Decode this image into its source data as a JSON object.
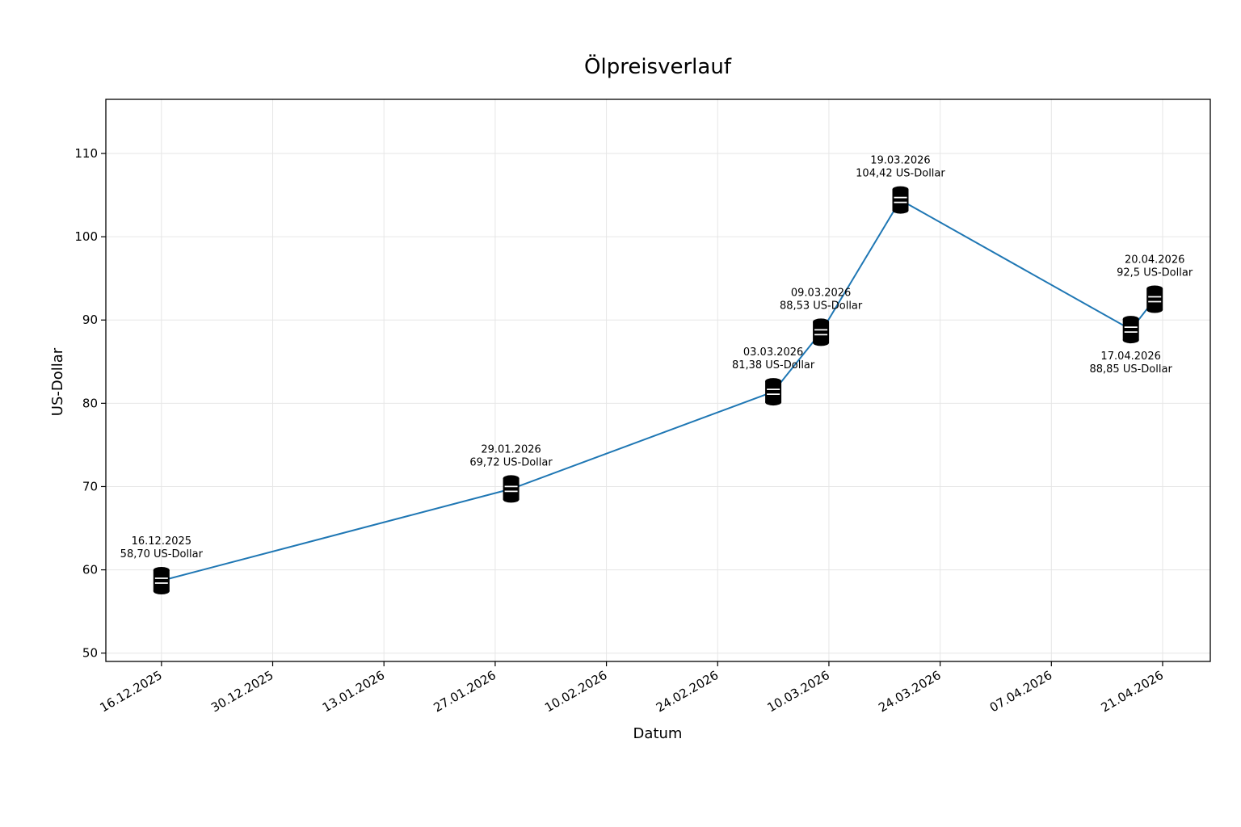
{
  "chart_data": {
    "type": "line",
    "title": "Ölpreisverlauf",
    "xlabel": "Datum",
    "ylabel": "US-Dollar",
    "ylim": [
      49,
      116.5
    ],
    "xlim": [
      "2025-12-09",
      "2026-04-27"
    ],
    "y_ticks": [
      50,
      60,
      70,
      80,
      90,
      100,
      110
    ],
    "x_ticks": [
      {
        "date": "2025-12-16",
        "label": "16.12.2025"
      },
      {
        "date": "2025-12-30",
        "label": "30.12.2025"
      },
      {
        "date": "2026-01-13",
        "label": "13.01.2026"
      },
      {
        "date": "2026-01-27",
        "label": "27.01.2026"
      },
      {
        "date": "2026-02-10",
        "label": "10.02.2026"
      },
      {
        "date": "2026-02-24",
        "label": "24.02.2026"
      },
      {
        "date": "2026-03-10",
        "label": "10.03.2026"
      },
      {
        "date": "2026-03-24",
        "label": "24.03.2026"
      },
      {
        "date": "2026-04-07",
        "label": "07.04.2026"
      },
      {
        "date": "2026-04-21",
        "label": "21.04.2026"
      }
    ],
    "grid": true,
    "line_color": "#1f77b4",
    "marker_icon": "oil-barrel-icon",
    "marker_color": "#000000",
    "points": [
      {
        "date": "2025-12-16",
        "value": 58.7,
        "label_date": "16.12.2025",
        "label_value": "58,70 US-Dollar",
        "label_position": "above"
      },
      {
        "date": "2026-01-29",
        "value": 69.72,
        "label_date": "29.01.2026",
        "label_value": "69,72 US-Dollar",
        "label_position": "above"
      },
      {
        "date": "2026-03-03",
        "value": 81.38,
        "label_date": "03.03.2026",
        "label_value": "81,38 US-Dollar",
        "label_position": "above"
      },
      {
        "date": "2026-03-09",
        "value": 88.53,
        "label_date": "09.03.2026",
        "label_value": "88,53 US-Dollar",
        "label_position": "above"
      },
      {
        "date": "2026-03-19",
        "value": 104.42,
        "label_date": "19.03.2026",
        "label_value": "104,42 US-Dollar",
        "label_position": "above"
      },
      {
        "date": "2026-04-17",
        "value": 88.85,
        "label_date": "17.04.2026",
        "label_value": "88,85 US-Dollar",
        "label_position": "below"
      },
      {
        "date": "2026-04-20",
        "value": 92.5,
        "label_date": "20.04.2026",
        "label_value": "92,5 US-Dollar",
        "label_position": "above"
      }
    ]
  }
}
